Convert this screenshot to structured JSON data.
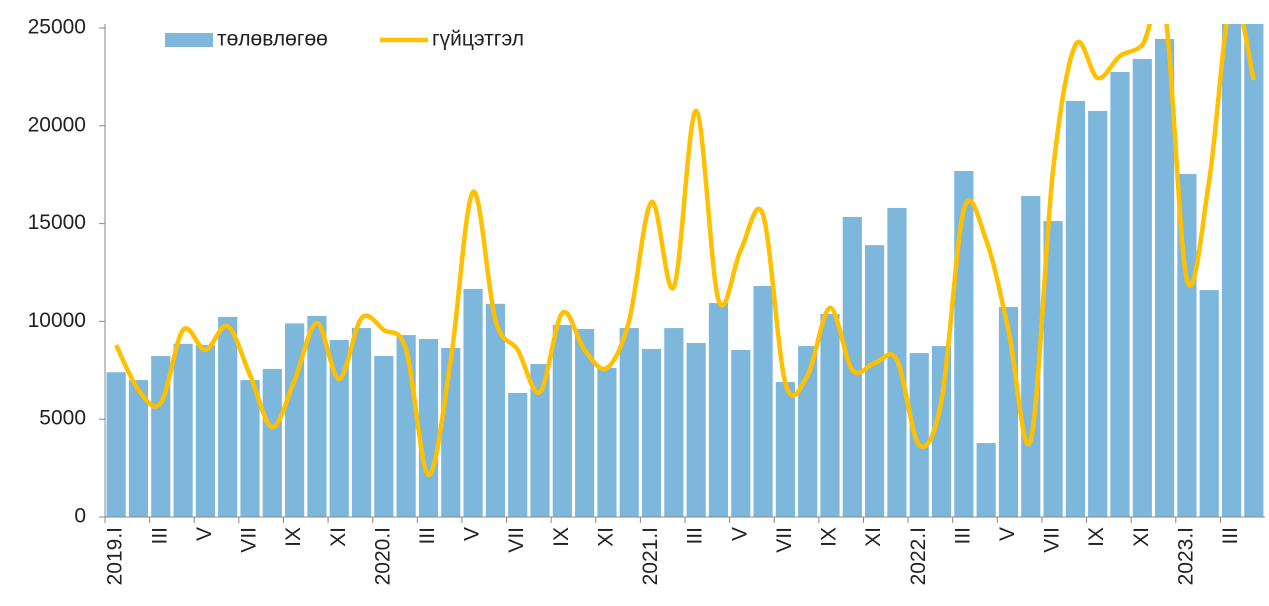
{
  "chart_data": {
    "type": "bar-line",
    "categories": [
      "2019.I",
      null,
      "III",
      null,
      "V",
      null,
      "VII",
      null,
      "IX",
      null,
      "XI",
      null,
      "2020.I",
      null,
      "III",
      null,
      "V",
      null,
      "VII",
      null,
      "IX",
      null,
      "XI",
      null,
      "2021.I",
      null,
      "III",
      null,
      "V",
      null,
      "VII",
      null,
      "IX",
      null,
      "XI",
      null,
      "2022.I",
      null,
      "III",
      null,
      "V",
      null,
      "VII",
      null,
      "IX",
      null,
      "XI",
      null,
      "2023.I",
      null,
      "III",
      null
    ],
    "series": [
      {
        "name": "төлөвлөгөө",
        "type": "bar",
        "color": "#7db7dc",
        "values": [
          7400,
          7000,
          8230,
          8850,
          8800,
          10230,
          7000,
          7570,
          9900,
          10280,
          9050,
          9660,
          8230,
          9300,
          9100,
          8640,
          11660,
          10900,
          6340,
          7820,
          9820,
          9610,
          7620,
          9660,
          8590,
          9660,
          8900,
          10940,
          8540,
          11810,
          6900,
          8740,
          10380,
          15340,
          13900,
          15800,
          8380,
          8740,
          17690,
          3780,
          10740,
          16410,
          15130,
          21270,
          20760,
          22750,
          23420,
          24440,
          17540,
          11600,
          26000,
          26000
        ]
      },
      {
        "name": "гүйцэтгэл",
        "type": "line",
        "color": "#ffc000",
        "values": [
          8790,
          6500,
          5830,
          9560,
          8540,
          9760,
          7260,
          4600,
          7000,
          9920,
          7060,
          10170,
          9560,
          8540,
          2150,
          8030,
          16620,
          10070,
          8540,
          6390,
          10430,
          8540,
          7620,
          10070,
          16100,
          11760,
          20760,
          11090,
          13650,
          15440,
          6850,
          7260,
          10690,
          7520,
          7870,
          8030,
          3680,
          5980,
          15700,
          14160,
          9560,
          3940,
          17740,
          24130,
          22440,
          23570,
          24130,
          25900,
          12120,
          17230,
          26500,
          22340
        ]
      }
    ],
    "ylim": [
      0,
      25000
    ],
    "yticks": [
      0,
      5000,
      10000,
      15000,
      20000,
      25000
    ],
    "grid": false,
    "legend": "top-left"
  }
}
